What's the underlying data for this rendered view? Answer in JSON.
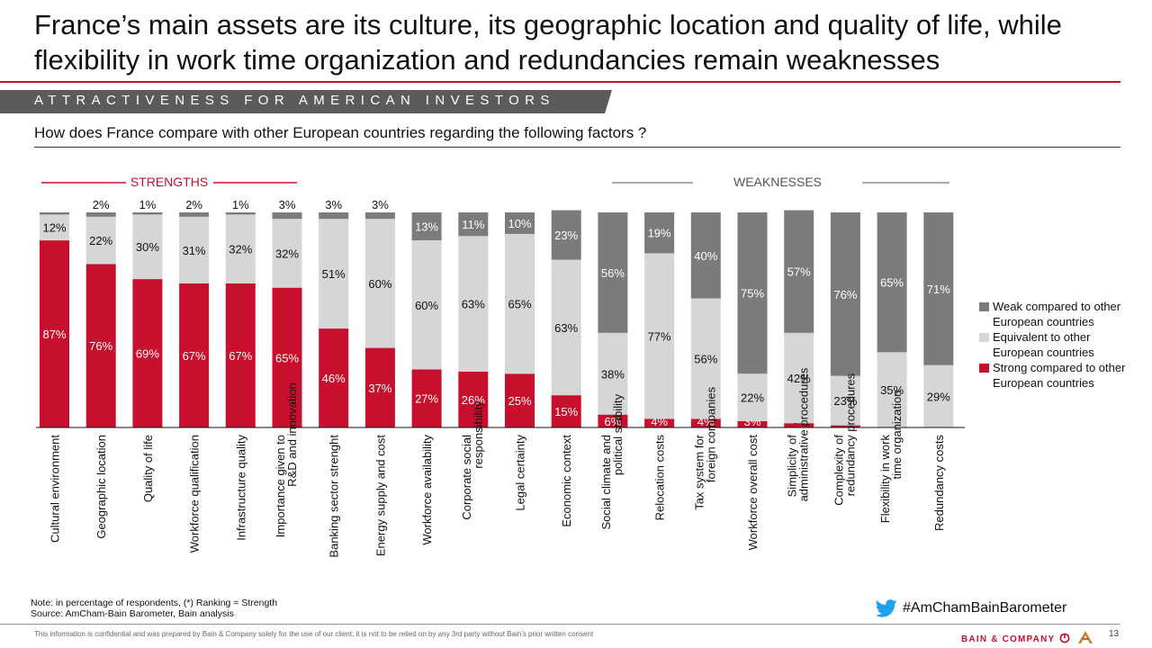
{
  "header": {
    "title": "France’s main assets are its culture, its geographic location and quality of life, while flexibility in work time organization and redundancies remain weaknesses",
    "section_label": "ATTRACTIVENESS FOR AMERICAN INVESTORS",
    "question": "How does France compare with other European countries regarding the following factors ?"
  },
  "colors": {
    "strong": "#c8102e",
    "equivalent": "#d6d6d6",
    "weak": "#7b7b7b",
    "accent_red": "#c8102e",
    "twitter": "#1da1f2"
  },
  "chart_data": {
    "type": "bar",
    "stacked": true,
    "ylim": [
      0,
      100
    ],
    "grid": false,
    "legend_position": "right",
    "group_labels": [
      "STRENGTHS",
      "WEAKNESSES"
    ],
    "categories": [
      "Cultural environment",
      "Geographic location",
      "Quality of life",
      "Workforce qualification",
      "Infrastructure quality",
      "Importance given to R&D and innovation",
      "Banking sector strenght",
      "Energy supply and cost",
      "Workforce availability",
      "Corporate social responsibility",
      "Legal certainty",
      "Economic context",
      "Social climate and political stability",
      "Relocation costs",
      "Tax system for foreign companies",
      "Workforce overall cost",
      "Simplicity of administrative procedures",
      "Complexity of redundancy procedures",
      "Flexibility in work time organization",
      "Redundancy costs"
    ],
    "series": [
      {
        "name": "Strong compared to other European countries",
        "values": [
          87,
          76,
          69,
          67,
          67,
          65,
          46,
          37,
          27,
          26,
          25,
          15,
          6,
          4,
          4,
          3,
          2,
          1,
          0,
          0
        ]
      },
      {
        "name": "Equivalent to other European countries",
        "values": [
          12,
          22,
          30,
          31,
          32,
          32,
          51,
          60,
          60,
          63,
          65,
          63,
          38,
          77,
          56,
          22,
          42,
          23,
          35,
          29
        ]
      },
      {
        "name": "Weak compared to other European countries",
        "values": [
          1,
          2,
          1,
          2,
          1,
          3,
          3,
          3,
          13,
          11,
          10,
          23,
          56,
          19,
          40,
          75,
          57,
          76,
          65,
          71
        ]
      }
    ],
    "data_labels": [
      [
        "87%",
        "12%",
        ""
      ],
      [
        "76%",
        "22%",
        "2%"
      ],
      [
        "69%",
        "30%",
        "1%"
      ],
      [
        "67%",
        "31%",
        "2%"
      ],
      [
        "67%",
        "32%",
        "1%"
      ],
      [
        "65%",
        "32%",
        "3%"
      ],
      [
        "46%",
        "51%",
        "3%"
      ],
      [
        "37%",
        "60%",
        "3%"
      ],
      [
        "27%",
        "60%",
        "13%"
      ],
      [
        "26%",
        "63%",
        "11%"
      ],
      [
        "25%",
        "65%",
        "10%"
      ],
      [
        "15%",
        "63%",
        "23%"
      ],
      [
        "6%",
        "38%",
        "56%"
      ],
      [
        "4%",
        "77%",
        "19%"
      ],
      [
        "4%",
        "56%",
        "40%"
      ],
      [
        "3%",
        "22%",
        "75%"
      ],
      [
        "2%",
        "42%",
        "57%"
      ],
      [
        "1%",
        "23%",
        "76%"
      ],
      [
        "",
        "35%",
        "65%"
      ],
      [
        "",
        "29%",
        "71%"
      ]
    ]
  },
  "legend": {
    "items": [
      {
        "label": "Weak compared to other European countries",
        "color_key": "weak"
      },
      {
        "label": "Equivalent to other European countries",
        "color_key": "equivalent"
      },
      {
        "label": "Strong compared to other European countries",
        "color_key": "strong"
      }
    ]
  },
  "note": {
    "line1": "Note: in percentage of respondents, (*) Ranking = Strength",
    "line2": "Source: AmCham-Bain Barometer, Bain analysis"
  },
  "footer": {
    "disclaimer": "This information is confidential and was prepared by Bain & Company solely for the use of our client; it is not to be relied on by any 3rd party without Bain’s prior written consent",
    "hashtag": "#AmChamBainBarometer",
    "brand": "BAIN & COMPANY",
    "page_number": "13"
  },
  "icons": {
    "twitter": "twitter-bird-icon",
    "bain_logo": "bain-logo-icon",
    "amcham_logo": "amcham-logo-icon"
  }
}
